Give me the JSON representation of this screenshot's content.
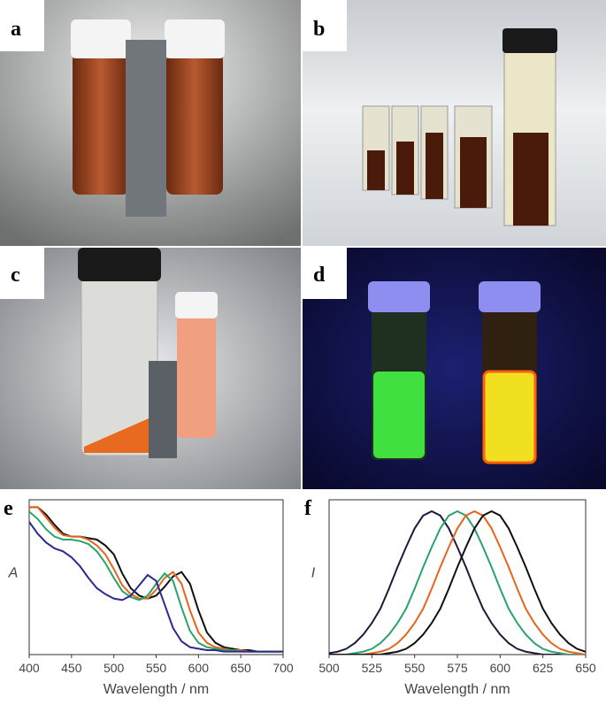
{
  "panels": [
    {
      "label": "a"
    },
    {
      "label": "b"
    },
    {
      "label": "c"
    },
    {
      "label": "d"
    }
  ],
  "chart_data": [
    {
      "type": "line",
      "label": "e",
      "ylabel": "A",
      "xlabel": "Wavelength / nm",
      "x": [
        400,
        410,
        420,
        430,
        440,
        450,
        460,
        470,
        480,
        490,
        500,
        510,
        520,
        530,
        540,
        550,
        560,
        570,
        580,
        590,
        600,
        610,
        620,
        630,
        640,
        650,
        660,
        670,
        680,
        690,
        700
      ],
      "xlim": [
        400,
        700
      ],
      "xticks": [
        400,
        450,
        500,
        550,
        600,
        650,
        700
      ],
      "ylim": [
        0,
        1.05
      ],
      "series": [
        {
          "color": "#111111",
          "values": [
            1.0,
            1.0,
            0.95,
            0.88,
            0.82,
            0.8,
            0.8,
            0.79,
            0.78,
            0.74,
            0.68,
            0.55,
            0.45,
            0.4,
            0.38,
            0.4,
            0.46,
            0.53,
            0.56,
            0.48,
            0.3,
            0.15,
            0.08,
            0.05,
            0.04,
            0.03,
            0.03,
            0.02,
            0.02,
            0.02,
            0.02
          ]
        },
        {
          "color": "#e8641c",
          "values": [
            1.0,
            1.0,
            0.93,
            0.86,
            0.81,
            0.8,
            0.8,
            0.78,
            0.74,
            0.68,
            0.58,
            0.47,
            0.41,
            0.38,
            0.38,
            0.44,
            0.52,
            0.56,
            0.48,
            0.3,
            0.15,
            0.08,
            0.05,
            0.04,
            0.03,
            0.03,
            0.02,
            0.02,
            0.02,
            0.02,
            0.02
          ]
        },
        {
          "color": "#2aa36a",
          "values": [
            0.97,
            0.92,
            0.85,
            0.8,
            0.78,
            0.78,
            0.77,
            0.75,
            0.7,
            0.62,
            0.52,
            0.43,
            0.39,
            0.37,
            0.4,
            0.48,
            0.55,
            0.5,
            0.32,
            0.16,
            0.08,
            0.05,
            0.04,
            0.03,
            0.03,
            0.02,
            0.02,
            0.02,
            0.02,
            0.02,
            0.02
          ]
        },
        {
          "color": "#2b2b8f",
          "values": [
            0.9,
            0.82,
            0.76,
            0.72,
            0.7,
            0.66,
            0.6,
            0.52,
            0.45,
            0.41,
            0.38,
            0.37,
            0.4,
            0.47,
            0.54,
            0.5,
            0.34,
            0.18,
            0.09,
            0.05,
            0.04,
            0.03,
            0.03,
            0.02,
            0.02,
            0.02,
            0.02,
            0.02,
            0.02,
            0.02,
            0.02
          ]
        }
      ]
    },
    {
      "type": "line",
      "label": "f",
      "ylabel": "I",
      "xlabel": "Wavelength / nm",
      "x": [
        500,
        505,
        510,
        515,
        520,
        525,
        530,
        535,
        540,
        545,
        550,
        555,
        560,
        565,
        570,
        575,
        580,
        585,
        590,
        595,
        600,
        605,
        610,
        615,
        620,
        625,
        630,
        635,
        640,
        645,
        650
      ],
      "xlim": [
        500,
        650
      ],
      "xticks": [
        500,
        525,
        550,
        575,
        600,
        625,
        650
      ],
      "ylim": [
        0,
        1.08
      ],
      "series": [
        {
          "color": "#1c1c3a",
          "values": [
            0.01,
            0.02,
            0.04,
            0.08,
            0.14,
            0.22,
            0.32,
            0.46,
            0.61,
            0.75,
            0.88,
            0.97,
            1.0,
            0.97,
            0.88,
            0.75,
            0.61,
            0.46,
            0.32,
            0.22,
            0.14,
            0.08,
            0.04,
            0.02,
            0.01,
            0,
            0,
            0,
            0,
            0,
            0
          ]
        },
        {
          "color": "#2aa36a",
          "values": [
            0,
            0,
            0,
            0.01,
            0.02,
            0.04,
            0.08,
            0.14,
            0.22,
            0.32,
            0.46,
            0.61,
            0.75,
            0.88,
            0.97,
            1.0,
            0.97,
            0.88,
            0.75,
            0.61,
            0.46,
            0.32,
            0.22,
            0.14,
            0.08,
            0.04,
            0.02,
            0.01,
            0,
            0,
            0
          ]
        },
        {
          "color": "#e8641c",
          "values": [
            0,
            0,
            0,
            0,
            0,
            0.01,
            0.02,
            0.04,
            0.08,
            0.14,
            0.22,
            0.32,
            0.46,
            0.61,
            0.75,
            0.88,
            0.97,
            1.0,
            0.97,
            0.88,
            0.75,
            0.61,
            0.46,
            0.32,
            0.22,
            0.14,
            0.08,
            0.04,
            0.02,
            0.01,
            0
          ]
        },
        {
          "color": "#111111",
          "values": [
            0,
            0,
            0,
            0,
            0,
            0,
            0,
            0.01,
            0.02,
            0.04,
            0.08,
            0.14,
            0.22,
            0.32,
            0.46,
            0.61,
            0.75,
            0.88,
            0.97,
            1.0,
            0.97,
            0.88,
            0.75,
            0.61,
            0.46,
            0.32,
            0.22,
            0.14,
            0.08,
            0.04,
            0.02
          ]
        }
      ]
    }
  ]
}
